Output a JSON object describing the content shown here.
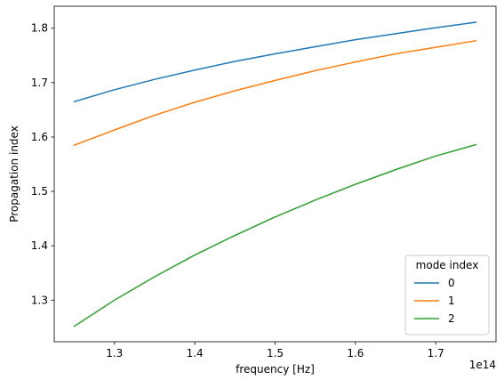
{
  "chart_data": {
    "type": "line",
    "title": "",
    "xlabel": "frequency [Hz]",
    "ylabel": "Propagation index",
    "x_offset_label": "1e14",
    "x_scale_exponent": 14,
    "xlim": [
      1.225,
      1.775
    ],
    "ylim": [
      1.2235,
      1.8405
    ],
    "x_ticks": [
      1.3,
      1.4,
      1.5,
      1.6,
      1.7
    ],
    "x_tick_labels": [
      "1.3",
      "1.4",
      "1.5",
      "1.6",
      "1.7"
    ],
    "y_ticks": [
      1.3,
      1.4,
      1.5,
      1.6,
      1.7,
      1.8
    ],
    "y_tick_labels": [
      "1.3",
      "1.4",
      "1.5",
      "1.6",
      "1.7",
      "1.8"
    ],
    "grid": false,
    "legend": {
      "title": "mode index",
      "position": "lower-right",
      "entries": [
        "0",
        "1",
        "2"
      ]
    },
    "x": [
      1.25,
      1.3,
      1.35,
      1.4,
      1.45,
      1.5,
      1.55,
      1.6,
      1.65,
      1.7,
      1.75
    ],
    "series": [
      {
        "name": "0",
        "color": "#1f77b4",
        "values": [
          1.665,
          1.687,
          1.706,
          1.723,
          1.739,
          1.753,
          1.766,
          1.779,
          1.79,
          1.801,
          1.811
        ]
      },
      {
        "name": "1",
        "color": "#ff7f0e",
        "values": [
          1.585,
          1.613,
          1.64,
          1.664,
          1.685,
          1.704,
          1.722,
          1.738,
          1.753,
          1.765,
          1.777
        ]
      },
      {
        "name": "2",
        "color": "#2ca02c",
        "values": [
          1.252,
          1.3,
          1.343,
          1.383,
          1.419,
          1.453,
          1.484,
          1.513,
          1.54,
          1.565,
          1.586
        ]
      }
    ]
  }
}
